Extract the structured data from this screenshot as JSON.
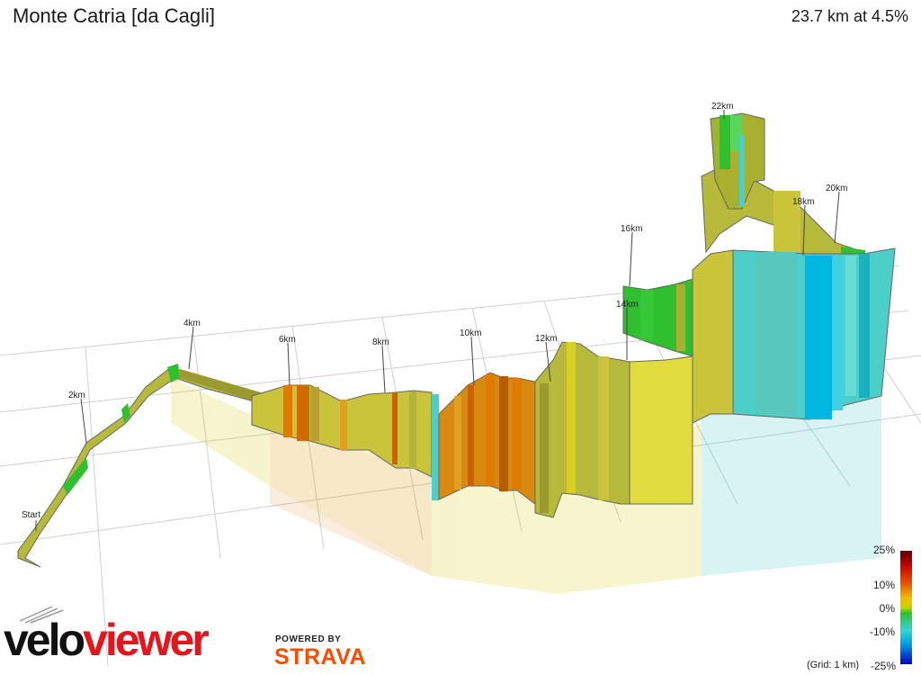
{
  "header": {
    "title": "Monte Catria [da Cagli]",
    "summary": "23.7 km at 4.5%"
  },
  "km_markers": [
    "Start",
    "2km",
    "4km",
    "6km",
    "8km",
    "10km",
    "12km",
    "14km",
    "16km",
    "18km",
    "20km",
    "22km"
  ],
  "legend": {
    "ticks": [
      "25%",
      "10%",
      "0%",
      "-10%",
      "-25%"
    ],
    "grid_note": "(Grid: 1 km)",
    "colors": {
      "steep": "#c00000",
      "hard": "#e07a00",
      "moderate": "#d8d020",
      "easy": "#a9b030",
      "flat": "#2fbf2f",
      "descent": "#4ccfc8",
      "steep_descent": "#00b8e0"
    }
  },
  "branding": {
    "velo": "velo",
    "viewer": "viewer",
    "powered_by": "POWERED BY",
    "strava": "STRAVA"
  }
}
